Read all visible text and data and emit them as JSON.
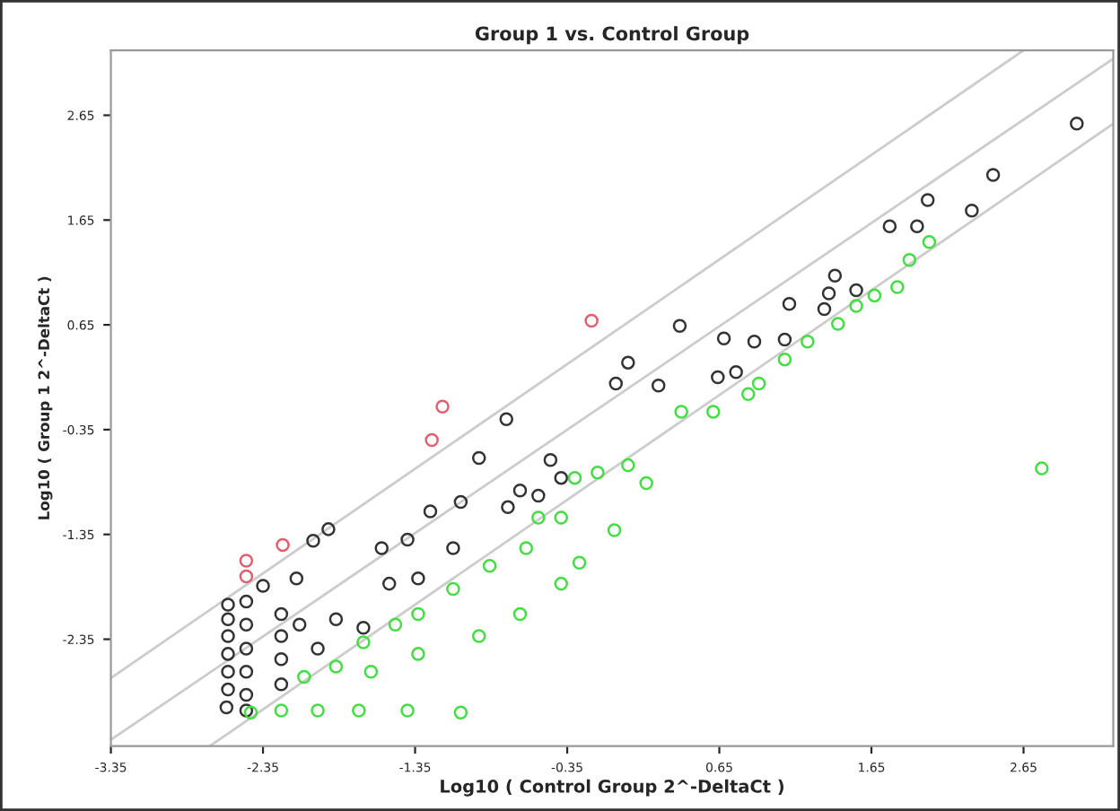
{
  "chart_data": {
    "type": "scatter",
    "title": "Group 1 vs. Control Group",
    "xlabel": "Log10 ( Control Group 2^-DeltaCt )",
    "ylabel": "Log10 ( Group 1 2^-DeltaCt )",
    "xlim": [
      -3.35,
      3.24
    ],
    "ylim": [
      -3.37,
      3.27
    ],
    "xticks": [
      -3.35,
      -2.35,
      -1.35,
      -0.35,
      0.65,
      1.65,
      2.65
    ],
    "yticks": [
      -2.35,
      -1.35,
      -0.35,
      0.65,
      1.65,
      2.65
    ],
    "grid": false,
    "marker": "circle",
    "series": [
      {
        "type": "line",
        "marker": "none",
        "color": "#cccccc",
        "x": [
          -3.35,
          2.65
        ],
        "values": [
          -2.72,
          3.27
        ]
      },
      {
        "type": "line",
        "marker": "none",
        "color": "#cccccc",
        "x": [
          -3.35,
          3.24
        ],
        "values": [
          -3.31,
          3.19
        ]
      },
      {
        "type": "line",
        "marker": "none",
        "color": "#cccccc",
        "x": [
          -2.7,
          3.24
        ],
        "values": [
          -3.37,
          2.57
        ]
      },
      {
        "color": "#333333",
        "x": [
          3.0,
          2.45,
          2.31,
          2.02,
          1.95,
          1.77,
          1.41,
          1.37,
          1.55,
          1.11,
          1.34,
          0.39,
          0.68,
          0.88,
          1.08,
          0.05,
          -0.03,
          0.64,
          0.76,
          0.25,
          -0.75,
          -0.93,
          -1.05,
          -1.25,
          -1.4,
          -1.57,
          -1.92,
          -2.02,
          -2.13,
          -2.35,
          -2.58,
          -2.58,
          -2.58,
          -2.58,
          -2.58,
          -2.58,
          -2.59,
          -2.46,
          -2.46,
          -2.46,
          -2.46,
          -2.46,
          -2.46,
          -2.23,
          -2.23,
          -2.23,
          -2.23,
          -2.11,
          -1.99,
          -1.87,
          -1.69,
          -1.52,
          -1.33,
          -1.1,
          -0.74,
          -0.54,
          -0.39,
          -0.46,
          -0.66
        ],
        "values": [
          2.57,
          2.08,
          1.74,
          1.84,
          1.59,
          1.59,
          1.12,
          0.95,
          0.98,
          0.85,
          0.8,
          0.64,
          0.52,
          0.49,
          0.51,
          0.29,
          0.09,
          0.15,
          0.2,
          0.07,
          -0.25,
          -0.62,
          -1.04,
          -1.13,
          -1.4,
          -1.48,
          -1.3,
          -1.41,
          -1.77,
          -1.84,
          -2.02,
          -2.16,
          -2.32,
          -2.49,
          -2.66,
          -2.83,
          -3.0,
          -1.99,
          -2.21,
          -2.44,
          -2.66,
          -2.88,
          -3.03,
          -2.11,
          -2.32,
          -2.54,
          -2.78,
          -2.21,
          -2.44,
          -2.16,
          -2.24,
          -1.82,
          -1.77,
          -1.48,
          -1.09,
          -0.98,
          -0.81,
          -0.64,
          -0.93
        ]
      },
      {
        "color": "#44dd44",
        "x": [
          -2.43,
          -2.23,
          -1.99,
          -1.72,
          -1.4,
          -1.05,
          -2.08,
          -1.87,
          -1.69,
          -1.48,
          -1.33,
          -1.1,
          -0.86,
          -0.62,
          -0.39,
          -1.64,
          -1.33,
          -0.93,
          -0.66,
          -0.39,
          -0.54,
          -0.3,
          -0.15,
          0.05,
          0.17,
          0.4,
          0.61,
          -0.04,
          -0.27,
          0.84,
          2.77,
          2.03,
          1.9,
          1.82,
          1.67,
          1.55,
          1.43,
          1.23,
          1.08,
          0.91
        ],
        "values": [
          -3.05,
          -3.03,
          -3.03,
          -3.03,
          -3.03,
          -3.05,
          -2.71,
          -2.61,
          -2.38,
          -2.21,
          -2.11,
          -1.87,
          -1.65,
          -1.48,
          -1.19,
          -2.66,
          -2.49,
          -2.32,
          -2.11,
          -1.82,
          -1.19,
          -0.81,
          -0.76,
          -0.69,
          -0.86,
          -0.18,
          -0.18,
          -1.31,
          -1.62,
          -0.01,
          -0.72,
          1.44,
          1.27,
          1.01,
          0.93,
          0.83,
          0.66,
          0.49,
          0.32,
          0.09
        ]
      },
      {
        "color": "#e06070",
        "x": [
          -0.19,
          -1.17,
          -1.24,
          -2.22,
          -2.46,
          -2.46
        ],
        "values": [
          0.69,
          -0.13,
          -0.45,
          -1.45,
          -1.6,
          -1.75
        ]
      }
    ]
  }
}
